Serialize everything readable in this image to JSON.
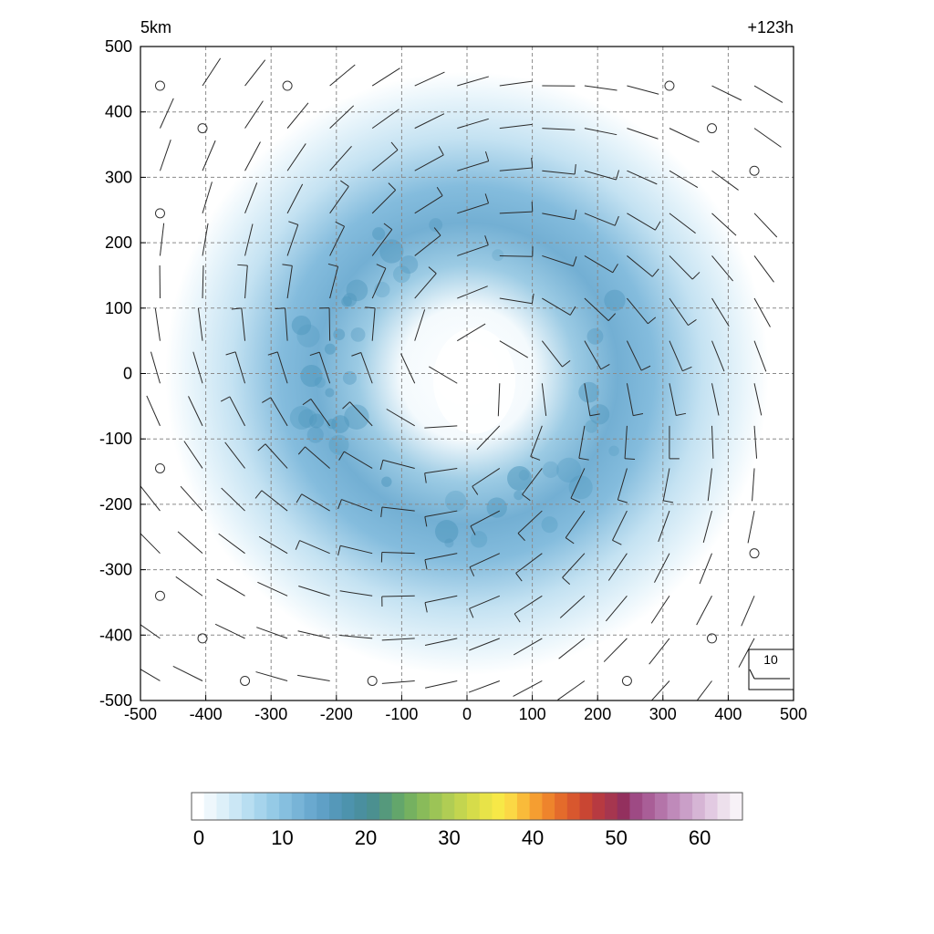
{
  "chart_data": {
    "type": "heatmap",
    "level_label": "5km",
    "time_label": "+123h",
    "xlim": [
      -500,
      500
    ],
    "ylim": [
      -500,
      500
    ],
    "x_ticks": [
      "-500",
      "-400",
      "-300",
      "-200",
      "-100",
      "0",
      "100",
      "200",
      "300",
      "400",
      "500"
    ],
    "y_ticks": [
      "500",
      "400",
      "300",
      "200",
      "100",
      "0",
      "-100",
      "-200",
      "-300",
      "-400",
      "-500"
    ],
    "grid": true,
    "field": {
      "shape": "annulus",
      "center": [
        0,
        0
      ],
      "peak_radius_km": 220,
      "peak_value": 14,
      "outer_edge_radius_km": 440,
      "eye_radius_km": 90
    },
    "wind_barbs": {
      "spacing_km": 65,
      "reference_key_label": "10",
      "flow": "cyclonic"
    },
    "colorbar": {
      "min": 0,
      "max": 66,
      "tick_labels": [
        "0",
        "10",
        "20",
        "30",
        "40",
        "50",
        "60"
      ],
      "colors": [
        "#ffffff",
        "#eef7fc",
        "#ddf0f9",
        "#cbe7f5",
        "#b8def1",
        "#a6d4ec",
        "#95cae6",
        "#86bfdf",
        "#78b4d7",
        "#6aa9cf",
        "#5fa0c6",
        "#5598b9",
        "#4d93ad",
        "#4a8f9f",
        "#4b9090",
        "#55997c",
        "#63a66b",
        "#75b160",
        "#89bb5a",
        "#9cc456",
        "#b0cd54",
        "#c3d54f",
        "#d6dc4a",
        "#e8e348",
        "#f7e847",
        "#fbd845",
        "#f9bb3a",
        "#f59e31",
        "#ee842c",
        "#e46b2b",
        "#d8572e",
        "#c94633",
        "#b73a41",
        "#a6364f",
        "#93305e",
        "#9e4a84",
        "#a95e97",
        "#b474a9",
        "#bf8aba",
        "#ca9fc8",
        "#d6b5d5",
        "#e2cae2",
        "#ede0ec",
        "#f7f2f7"
      ]
    }
  }
}
